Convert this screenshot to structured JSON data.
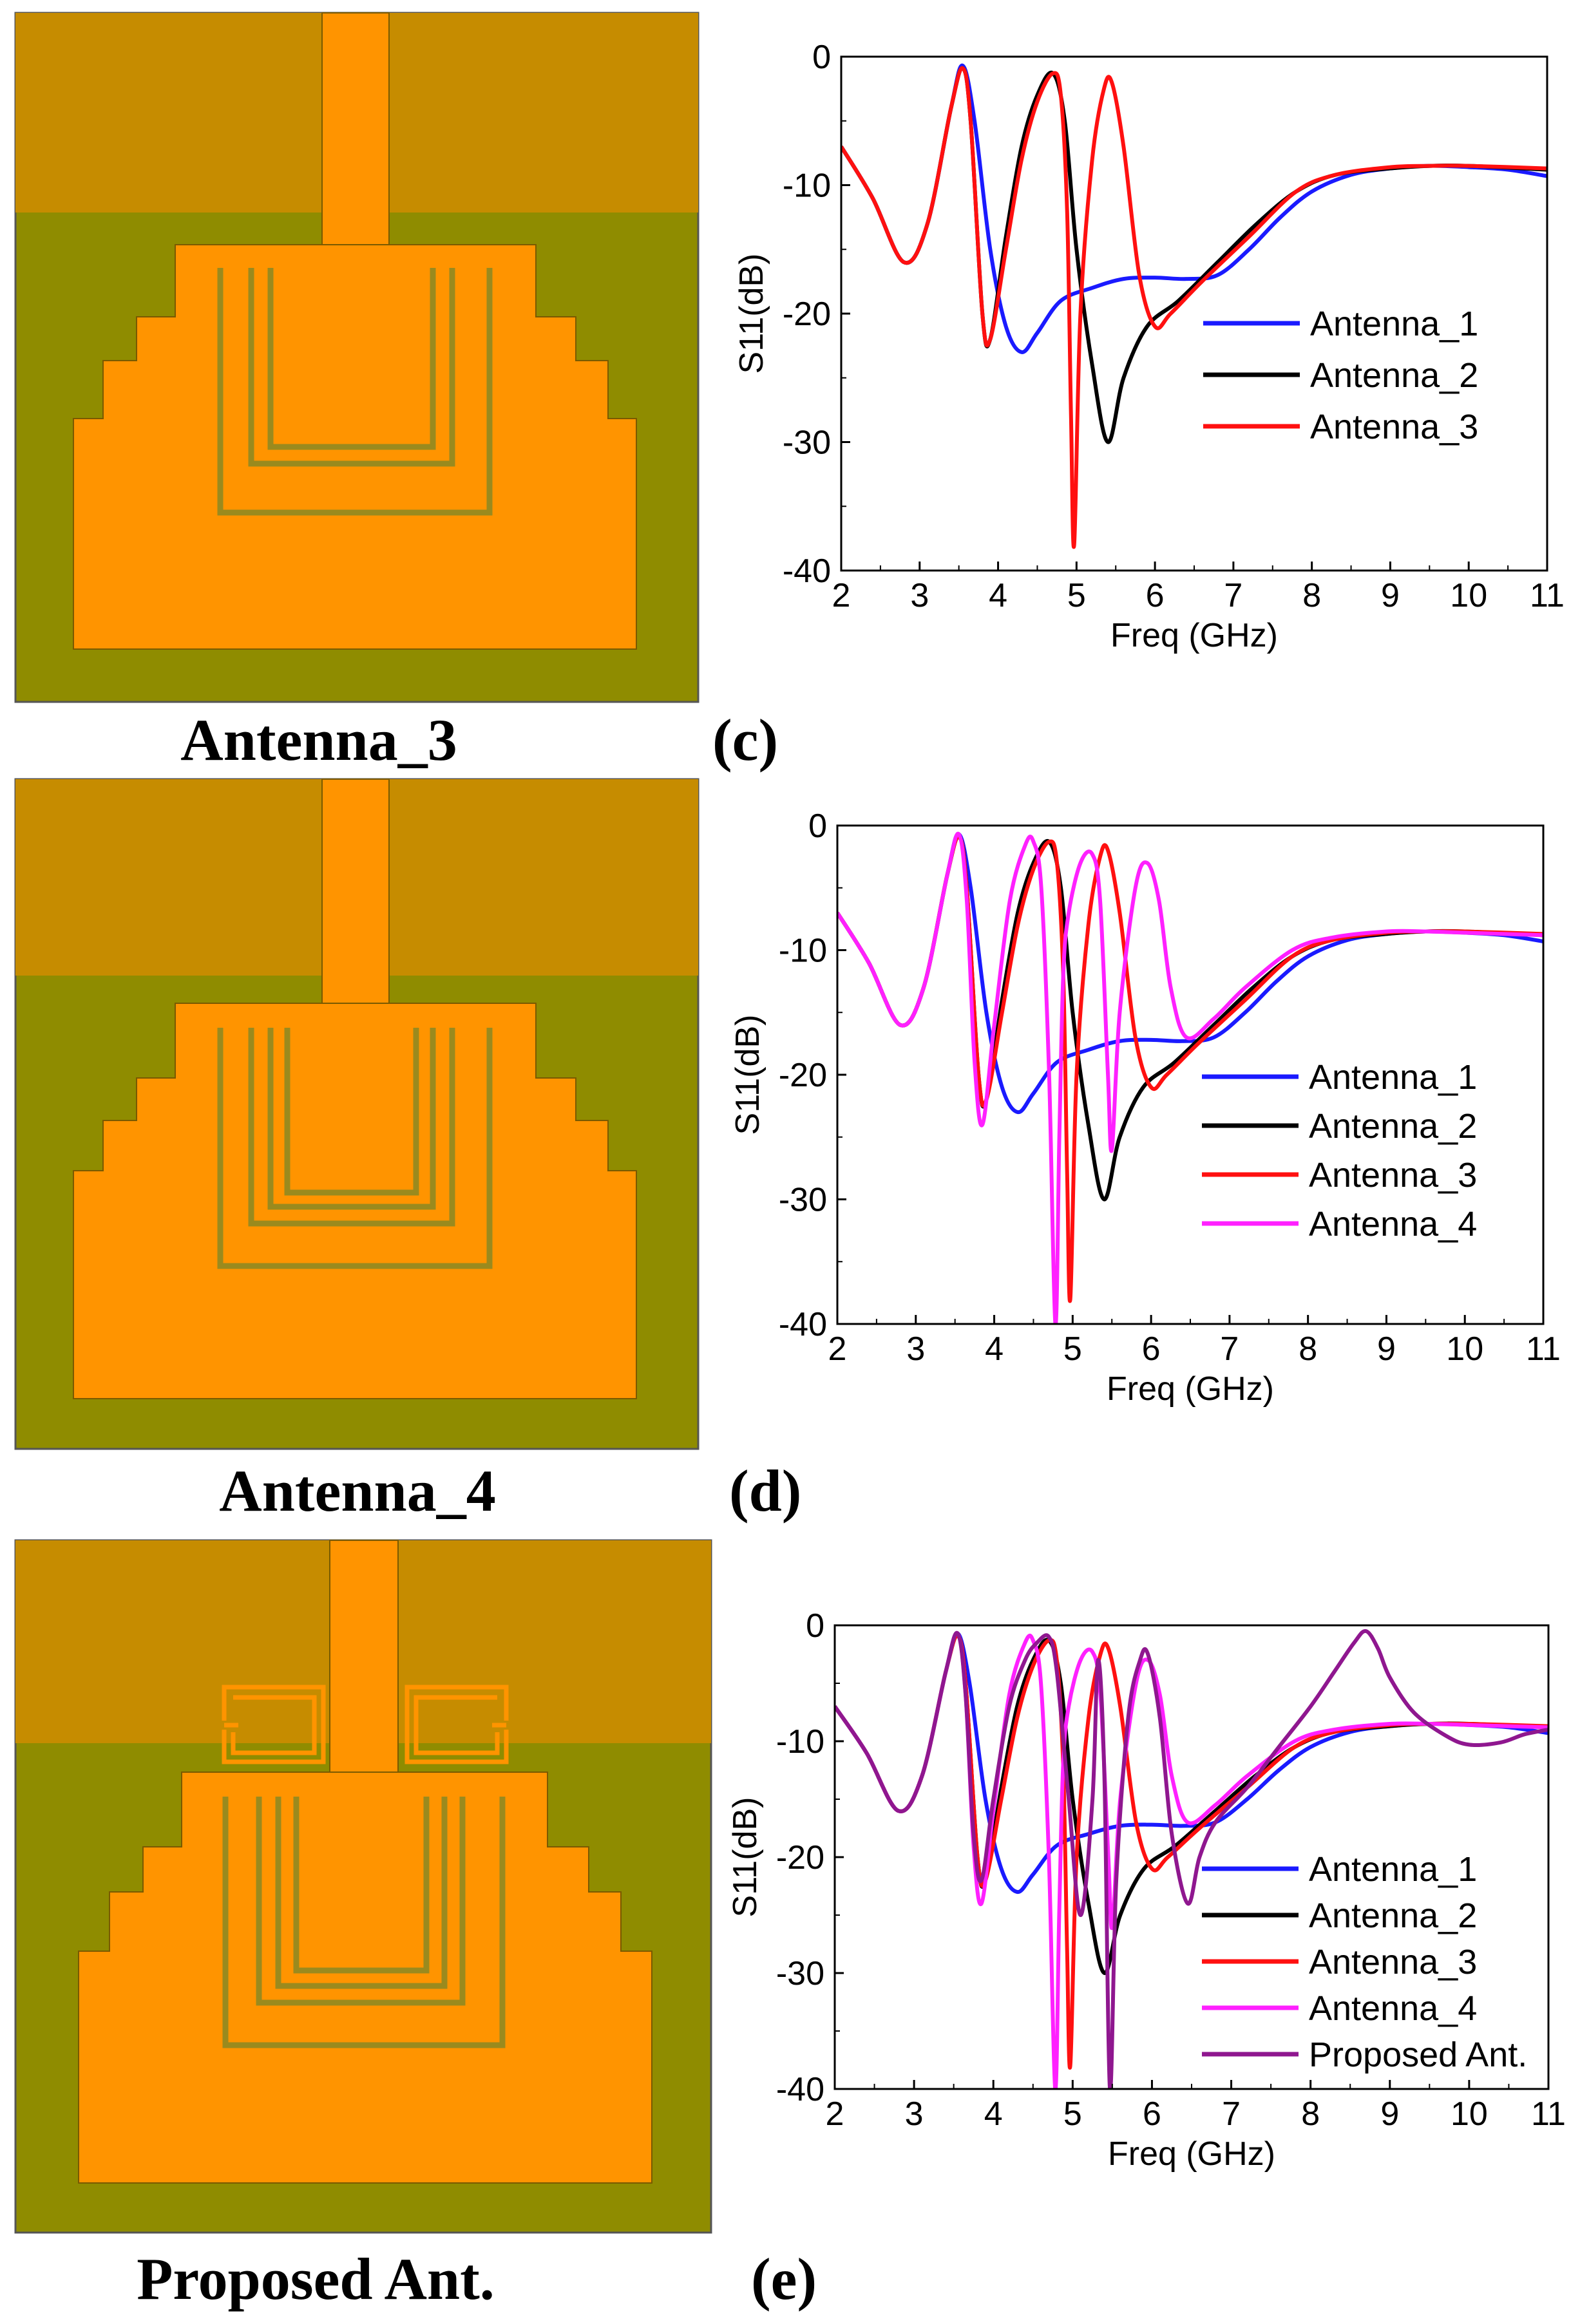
{
  "colors": {
    "substrate_green": "#8f8c00",
    "ground_gold": "#c68c00",
    "copper_orange": "#ff9400",
    "slot_olive": "#9a8a1e",
    "antenna_1": "#1a1aff",
    "antenna_2": "#000000",
    "antenna_3": "#ff1010",
    "antenna_4": "#ff20ff",
    "proposed": "#8f178f"
  },
  "panels": [
    {
      "antenna_caption": "Antenna_3",
      "panel_label": "(c)",
      "layout_key": "antenna_3"
    },
    {
      "antenna_caption": "Antenna_4",
      "panel_label": "(d)",
      "layout_key": "antenna_4"
    },
    {
      "antenna_caption": "Proposed Ant.",
      "panel_label": "(e)",
      "layout_key": "proposed"
    }
  ],
  "chart_data": [
    {
      "type": "line",
      "title": "",
      "xlabel": "Freq (GHz)",
      "ylabel": "S11(dB)",
      "xlim": [
        2,
        11
      ],
      "ylim": [
        -40,
        0
      ],
      "xticks": [
        "2",
        "3",
        "4",
        "5",
        "6",
        "7",
        "8",
        "9",
        "10",
        "11"
      ],
      "yticks": [
        "0",
        "-10",
        "-20",
        "-30",
        "-40"
      ],
      "series": [
        {
          "name": "Antenna_1",
          "color": "#1a1aff",
          "x": [
            2,
            2.4,
            2.8,
            3.1,
            3.4,
            3.55,
            3.7,
            3.9,
            4.1,
            4.3,
            4.5,
            4.8,
            5.2,
            5.6,
            6.0,
            6.4,
            6.8,
            7.2,
            7.6,
            8.0,
            8.5,
            9.0,
            9.5,
            10,
            10.5,
            11
          ],
          "y": [
            -7,
            -11,
            -16,
            -13,
            -4,
            -0.7,
            -5,
            -15,
            -21,
            -23,
            -21.5,
            -19,
            -18,
            -17.3,
            -17.2,
            -17.3,
            -17,
            -15,
            -12.5,
            -10.5,
            -9.2,
            -8.7,
            -8.5,
            -8.6,
            -8.8,
            -9.3
          ]
        },
        {
          "name": "Antenna_2",
          "color": "#000000",
          "x": [
            2,
            2.4,
            2.8,
            3.1,
            3.4,
            3.55,
            3.65,
            3.8,
            3.9,
            4.1,
            4.3,
            4.5,
            4.7,
            4.85,
            5.0,
            5.2,
            5.4,
            5.6,
            5.9,
            6.3,
            6.8,
            7.3,
            7.8,
            8.3,
            9.0,
            9.5,
            10,
            11
          ],
          "y": [
            -7,
            -11,
            -16,
            -13,
            -4,
            -0.9,
            -5,
            -20,
            -22,
            -14,
            -7,
            -3,
            -1.3,
            -5,
            -15,
            -24,
            -30,
            -25,
            -21,
            -19,
            -16,
            -13,
            -10.5,
            -9.2,
            -8.7,
            -8.5,
            -8.5,
            -8.8
          ]
        },
        {
          "name": "Antenna_3",
          "color": "#ff1010",
          "x": [
            2,
            2.4,
            2.8,
            3.1,
            3.4,
            3.55,
            3.65,
            3.8,
            3.9,
            4.1,
            4.3,
            4.5,
            4.7,
            4.8,
            4.88,
            4.93,
            4.97,
            5.05,
            5.2,
            5.35,
            5.45,
            5.6,
            5.8,
            6.0,
            6.2,
            6.6,
            7.2,
            7.8,
            8.3,
            9.0,
            9.5,
            10,
            11
          ],
          "y": [
            -7,
            -11,
            -16,
            -13,
            -4,
            -0.9,
            -5,
            -20,
            -22,
            -15,
            -8,
            -3.5,
            -1.3,
            -3,
            -12,
            -28,
            -38,
            -20,
            -8,
            -2.5,
            -2,
            -7,
            -17,
            -21,
            -20,
            -17.5,
            -14,
            -10.5,
            -9.2,
            -8.6,
            -8.5,
            -8.5,
            -8.7
          ]
        }
      ]
    },
    {
      "type": "line",
      "title": "",
      "xlabel": "Freq (GHz)",
      "ylabel": "S11(dB)",
      "xlim": [
        2,
        11
      ],
      "ylim": [
        -40,
        0
      ],
      "xticks": [
        "2",
        "3",
        "4",
        "5",
        "6",
        "7",
        "8",
        "9",
        "10",
        "11"
      ],
      "yticks": [
        "0",
        "-10",
        "-20",
        "-30",
        "-40"
      ],
      "series": [
        {
          "name": "Antenna_1",
          "color": "#1a1aff",
          "x": [
            2,
            2.4,
            2.8,
            3.1,
            3.4,
            3.55,
            3.7,
            3.9,
            4.1,
            4.3,
            4.5,
            4.8,
            5.2,
            5.6,
            6.0,
            6.4,
            6.8,
            7.2,
            7.6,
            8.0,
            8.5,
            9.0,
            9.5,
            10,
            10.5,
            11
          ],
          "y": [
            -7,
            -11,
            -16,
            -13,
            -4,
            -0.7,
            -5,
            -15,
            -21,
            -23,
            -21.5,
            -19,
            -18,
            -17.3,
            -17.2,
            -17.3,
            -17,
            -15,
            -12.5,
            -10.5,
            -9.2,
            -8.7,
            -8.5,
            -8.6,
            -8.8,
            -9.3
          ]
        },
        {
          "name": "Antenna_2",
          "color": "#000000",
          "x": [
            2,
            2.4,
            2.8,
            3.1,
            3.4,
            3.55,
            3.65,
            3.8,
            3.9,
            4.1,
            4.3,
            4.5,
            4.7,
            4.85,
            5.0,
            5.2,
            5.4,
            5.6,
            5.9,
            6.3,
            6.8,
            7.3,
            7.8,
            8.3,
            9.0,
            9.5,
            10,
            11
          ],
          "y": [
            -7,
            -11,
            -16,
            -13,
            -4,
            -0.9,
            -5,
            -20,
            -22,
            -14,
            -7,
            -3,
            -1.3,
            -5,
            -15,
            -24,
            -30,
            -25,
            -21,
            -19,
            -16,
            -13,
            -10.5,
            -9.2,
            -8.7,
            -8.5,
            -8.5,
            -8.8
          ]
        },
        {
          "name": "Antenna_3",
          "color": "#ff1010",
          "x": [
            2,
            2.4,
            2.8,
            3.1,
            3.4,
            3.55,
            3.65,
            3.8,
            3.9,
            4.1,
            4.3,
            4.5,
            4.7,
            4.8,
            4.88,
            4.93,
            4.97,
            5.05,
            5.2,
            5.35,
            5.45,
            5.6,
            5.8,
            6.0,
            6.2,
            6.6,
            7.2,
            7.8,
            8.3,
            9.0,
            9.5,
            10,
            11
          ],
          "y": [
            -7,
            -11,
            -16,
            -13,
            -4,
            -0.9,
            -5,
            -20,
            -22,
            -15,
            -8,
            -3.5,
            -1.3,
            -3,
            -12,
            -28,
            -38,
            -20,
            -8,
            -2.5,
            -2,
            -7,
            -17,
            -21,
            -20,
            -17.5,
            -14,
            -10.5,
            -9.2,
            -8.6,
            -8.5,
            -8.5,
            -8.7
          ]
        },
        {
          "name": "Antenna_4",
          "color": "#ff20ff",
          "x": [
            2,
            2.4,
            2.8,
            3.1,
            3.4,
            3.55,
            3.65,
            3.75,
            3.85,
            4.0,
            4.2,
            4.4,
            4.5,
            4.6,
            4.7,
            4.78,
            4.83,
            4.88,
            4.95,
            5.1,
            5.25,
            5.35,
            5.45,
            5.5,
            5.6,
            5.8,
            5.95,
            6.1,
            6.25,
            6.45,
            6.8,
            7.2,
            7.8,
            8.3,
            9.0,
            9.5,
            10,
            11
          ],
          "y": [
            -7,
            -11,
            -16,
            -13,
            -4,
            -0.7,
            -6,
            -19,
            -24,
            -16,
            -6,
            -1.5,
            -1.3,
            -5,
            -20,
            -40,
            -25,
            -12,
            -7,
            -3,
            -2.3,
            -6,
            -20,
            -26,
            -15,
            -5,
            -3,
            -6,
            -13,
            -17,
            -15.5,
            -13,
            -10,
            -9,
            -8.5,
            -8.5,
            -8.6,
            -8.8
          ]
        }
      ]
    },
    {
      "type": "line",
      "title": "",
      "xlabel": "Freq (GHz)",
      "ylabel": "S11(dB)",
      "xlim": [
        2,
        11
      ],
      "ylim": [
        -40,
        0
      ],
      "xticks": [
        "2",
        "3",
        "4",
        "5",
        "6",
        "7",
        "8",
        "9",
        "10",
        "11"
      ],
      "yticks": [
        "0",
        "-10",
        "-20",
        "-30",
        "-40"
      ],
      "series": [
        {
          "name": "Antenna_1",
          "color": "#1a1aff",
          "x": [
            2,
            2.4,
            2.8,
            3.1,
            3.4,
            3.55,
            3.7,
            3.9,
            4.1,
            4.3,
            4.5,
            4.8,
            5.2,
            5.6,
            6.0,
            6.4,
            6.8,
            7.2,
            7.6,
            8.0,
            8.5,
            9.0,
            9.5,
            10,
            10.5,
            11
          ],
          "y": [
            -7,
            -11,
            -16,
            -13,
            -4,
            -0.7,
            -5,
            -15,
            -21,
            -23,
            -21.5,
            -19,
            -18,
            -17.3,
            -17.2,
            -17.3,
            -17,
            -15,
            -12.5,
            -10.5,
            -9.2,
            -8.7,
            -8.5,
            -8.6,
            -8.8,
            -9.3
          ]
        },
        {
          "name": "Antenna_2",
          "color": "#000000",
          "x": [
            2,
            2.4,
            2.8,
            3.1,
            3.4,
            3.55,
            3.65,
            3.8,
            3.9,
            4.1,
            4.3,
            4.5,
            4.7,
            4.85,
            5.0,
            5.2,
            5.4,
            5.6,
            5.9,
            6.3,
            6.8,
            7.3,
            7.8,
            8.3,
            9.0,
            9.5,
            10,
            11
          ],
          "y": [
            -7,
            -11,
            -16,
            -13,
            -4,
            -0.9,
            -5,
            -20,
            -22,
            -14,
            -7,
            -3,
            -1.3,
            -5,
            -15,
            -24,
            -30,
            -25,
            -21,
            -19,
            -16,
            -13,
            -10.5,
            -9.2,
            -8.7,
            -8.5,
            -8.5,
            -8.8
          ]
        },
        {
          "name": "Antenna_3",
          "color": "#ff1010",
          "x": [
            2,
            2.4,
            2.8,
            3.1,
            3.4,
            3.55,
            3.65,
            3.8,
            3.9,
            4.1,
            4.3,
            4.5,
            4.7,
            4.8,
            4.88,
            4.93,
            4.97,
            5.05,
            5.2,
            5.35,
            5.45,
            5.6,
            5.8,
            6.0,
            6.2,
            6.6,
            7.2,
            7.8,
            8.3,
            9.0,
            9.5,
            10,
            11
          ],
          "y": [
            -7,
            -11,
            -16,
            -13,
            -4,
            -0.9,
            -5,
            -20,
            -22,
            -15,
            -8,
            -3.5,
            -1.3,
            -3,
            -12,
            -28,
            -38,
            -20,
            -8,
            -2.5,
            -2,
            -7,
            -17,
            -21,
            -20,
            -17.5,
            -14,
            -10.5,
            -9.2,
            -8.6,
            -8.5,
            -8.5,
            -8.7
          ]
        },
        {
          "name": "Antenna_4",
          "color": "#ff20ff",
          "x": [
            2,
            2.4,
            2.8,
            3.1,
            3.4,
            3.55,
            3.65,
            3.75,
            3.85,
            4.0,
            4.2,
            4.4,
            4.5,
            4.6,
            4.7,
            4.78,
            4.83,
            4.88,
            4.95,
            5.1,
            5.25,
            5.35,
            5.45,
            5.5,
            5.6,
            5.8,
            5.95,
            6.1,
            6.25,
            6.45,
            6.8,
            7.2,
            7.8,
            8.3,
            9.0,
            9.5,
            10,
            11
          ],
          "y": [
            -7,
            -11,
            -16,
            -13,
            -4,
            -0.7,
            -6,
            -19,
            -24,
            -16,
            -6,
            -1.5,
            -1.3,
            -5,
            -20,
            -40,
            -25,
            -12,
            -7,
            -3,
            -2.3,
            -6,
            -20,
            -26,
            -15,
            -5,
            -3,
            -6,
            -13,
            -17,
            -15.5,
            -13,
            -10,
            -9,
            -8.5,
            -8.5,
            -8.6,
            -8.8
          ]
        },
        {
          "name": "Proposed Ant.",
          "color": "#8f178f",
          "x": [
            2,
            2.4,
            2.8,
            3.1,
            3.4,
            3.55,
            3.65,
            3.75,
            3.85,
            4.0,
            4.2,
            4.4,
            4.55,
            4.7,
            4.8,
            4.95,
            5.1,
            5.25,
            5.32,
            5.4,
            5.47,
            5.55,
            5.7,
            5.85,
            5.95,
            6.1,
            6.25,
            6.45,
            6.6,
            6.8,
            7.2,
            7.6,
            8.0,
            8.3,
            8.55,
            8.7,
            8.85,
            9.0,
            9.3,
            9.7,
            10.0,
            10.4,
            10.7,
            11
          ],
          "y": [
            -7,
            -11,
            -16,
            -13,
            -4,
            -0.7,
            -6,
            -18,
            -22,
            -15,
            -7,
            -3,
            -1.5,
            -1,
            -4,
            -15,
            -25,
            -15,
            -3,
            -13,
            -40,
            -22,
            -8,
            -3,
            -2.5,
            -8,
            -18,
            -24,
            -20,
            -17,
            -14,
            -10.5,
            -7,
            -4,
            -1.5,
            -0.5,
            -2,
            -4.5,
            -7.5,
            -9.5,
            -10.3,
            -10.1,
            -9.4,
            -9
          ]
        }
      ]
    }
  ]
}
